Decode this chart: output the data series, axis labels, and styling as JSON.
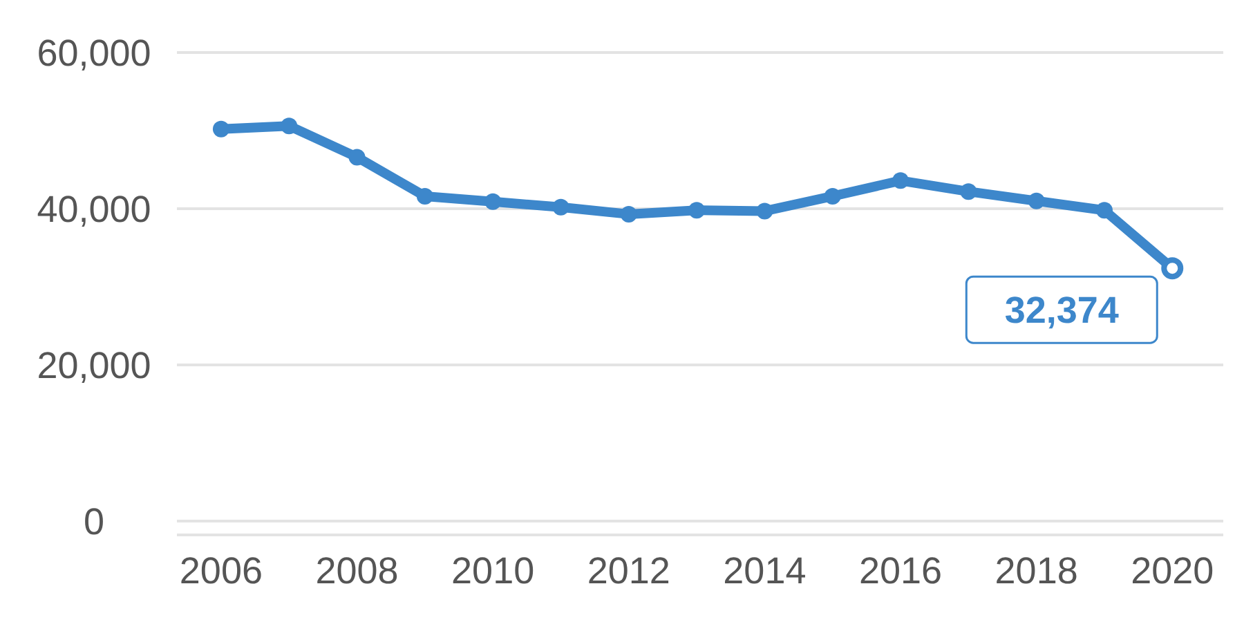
{
  "chart_data": {
    "type": "line",
    "x": [
      2006,
      2007,
      2008,
      2009,
      2010,
      2011,
      2012,
      2013,
      2014,
      2015,
      2016,
      2017,
      2018,
      2019,
      2020
    ],
    "series": [
      {
        "color": "#3d87cb",
        "values": [
          50200,
          50600,
          46600,
          41600,
          40900,
          40200,
          39300,
          39800,
          39700,
          41600,
          43600,
          42200,
          41000,
          39800,
          32374
        ]
      }
    ],
    "xlim": [
      2005.35,
      2020.75
    ],
    "xticks": [
      2006,
      2008,
      2010,
      2012,
      2014,
      2016,
      2018,
      2020
    ],
    "ylim": [
      0,
      60000
    ],
    "yticks": [
      {
        "value": 0,
        "label": "0"
      },
      {
        "value": 20000,
        "label": "20,000"
      },
      {
        "value": 40000,
        "label": "40,000"
      },
      {
        "value": 60000,
        "label": "60,000"
      }
    ],
    "grid": "y",
    "marker": "circle",
    "line_style": "solid",
    "annotations": [
      {
        "text": "32,374",
        "x": 2020,
        "y": 32374
      }
    ]
  }
}
